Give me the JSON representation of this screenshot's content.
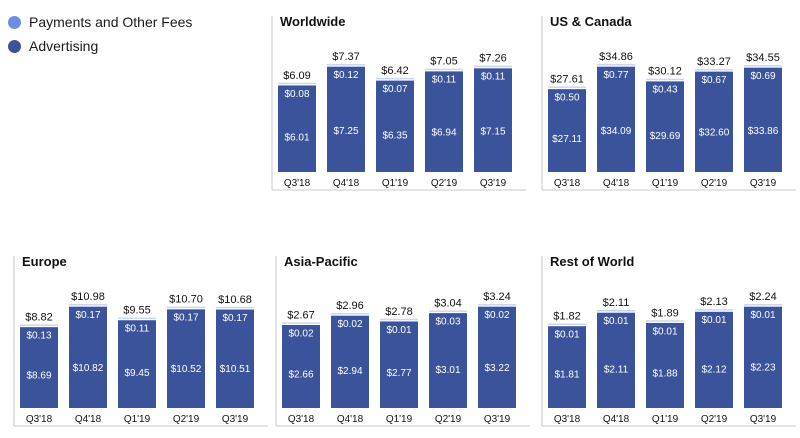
{
  "legend": {
    "items": [
      {
        "label": "Payments and Other Fees",
        "color": "#6d8de0"
      },
      {
        "label": "Advertising",
        "color": "#3b539a"
      }
    ]
  },
  "chart_data": [
    {
      "type": "bar",
      "stacked": true,
      "title": "Worldwide",
      "categories": [
        "Q3'18",
        "Q4'18",
        "Q1'19",
        "Q2'19",
        "Q3'19"
      ],
      "series": [
        {
          "name": "Advertising",
          "values": [
            6.01,
            7.25,
            6.35,
            6.94,
            7.15
          ],
          "labels": [
            "$6.01",
            "$7.25",
            "$6.35",
            "$6.94",
            "$7.15"
          ]
        },
        {
          "name": "Payments and Other Fees",
          "values": [
            0.08,
            0.12,
            0.07,
            0.11,
            0.11
          ],
          "labels": [
            "$0.08",
            "$0.12",
            "$0.07",
            "$0.11",
            "$0.11"
          ]
        }
      ],
      "totals": [
        6.09,
        7.37,
        6.42,
        7.05,
        7.26
      ],
      "total_labels": [
        "$6.09",
        "$7.37",
        "$6.42",
        "$7.05",
        "$7.26"
      ]
    },
    {
      "type": "bar",
      "stacked": true,
      "title": "US & Canada",
      "categories": [
        "Q3'18",
        "Q4'18",
        "Q1'19",
        "Q2'19",
        "Q3'19"
      ],
      "series": [
        {
          "name": "Advertising",
          "values": [
            27.11,
            34.09,
            29.69,
            32.6,
            33.86
          ],
          "labels": [
            "$27.11",
            "$34.09",
            "$29.69",
            "$32.60",
            "$33.86"
          ]
        },
        {
          "name": "Payments and Other Fees",
          "values": [
            0.5,
            0.77,
            0.43,
            0.67,
            0.69
          ],
          "labels": [
            "$0.50",
            "$0.77",
            "$0.43",
            "$0.67",
            "$0.69"
          ]
        }
      ],
      "totals": [
        27.61,
        34.86,
        30.12,
        33.27,
        34.55
      ],
      "total_labels": [
        "$27.61",
        "$34.86",
        "$30.12",
        "$33.27",
        "$34.55"
      ]
    },
    {
      "type": "bar",
      "stacked": true,
      "title": "Europe",
      "categories": [
        "Q3'18",
        "Q4'18",
        "Q1'19",
        "Q2'19",
        "Q3'19"
      ],
      "series": [
        {
          "name": "Advertising",
          "values": [
            8.69,
            10.82,
            9.45,
            10.52,
            10.51
          ],
          "labels": [
            "$8.69",
            "$10.82",
            "$9.45",
            "$10.52",
            "$10.51"
          ]
        },
        {
          "name": "Payments and Other Fees",
          "values": [
            0.13,
            0.17,
            0.11,
            0.17,
            0.17
          ],
          "labels": [
            "$0.13",
            "$0.17",
            "$0.11",
            "$0.17",
            "$0.17"
          ]
        }
      ],
      "totals": [
        8.82,
        10.98,
        9.55,
        10.7,
        10.68
      ],
      "total_labels": [
        "$8.82",
        "$10.98",
        "$9.55",
        "$10.70",
        "$10.68"
      ]
    },
    {
      "type": "bar",
      "stacked": true,
      "title": "Asia-Pacific",
      "categories": [
        "Q3'18",
        "Q4'18",
        "Q1'19",
        "Q2'19",
        "Q3'19"
      ],
      "series": [
        {
          "name": "Advertising",
          "values": [
            2.66,
            2.94,
            2.77,
            3.01,
            3.22
          ],
          "labels": [
            "$2.66",
            "$2.94",
            "$2.77",
            "$3.01",
            "$3.22"
          ]
        },
        {
          "name": "Payments and Other Fees",
          "values": [
            0.02,
            0.02,
            0.01,
            0.03,
            0.02
          ],
          "labels": [
            "$0.02",
            "$0.02",
            "$0.01",
            "$0.03",
            "$0.02"
          ]
        }
      ],
      "totals": [
        2.67,
        2.96,
        2.78,
        3.04,
        3.24
      ],
      "total_labels": [
        "$2.67",
        "$2.96",
        "$2.78",
        "$3.04",
        "$3.24"
      ]
    },
    {
      "type": "bar",
      "stacked": true,
      "title": "Rest of World",
      "categories": [
        "Q3'18",
        "Q4'18",
        "Q1'19",
        "Q2'19",
        "Q3'19"
      ],
      "series": [
        {
          "name": "Advertising",
          "values": [
            1.81,
            2.11,
            1.88,
            2.12,
            2.23
          ],
          "labels": [
            "$1.81",
            "$2.11",
            "$1.88",
            "$2.12",
            "$2.23"
          ]
        },
        {
          "name": "Payments and Other Fees",
          "values": [
            0.01,
            0.01,
            0.01,
            0.01,
            0.01
          ],
          "labels": [
            "$0.01",
            "$0.01",
            "$0.01",
            "$0.01",
            "$0.01"
          ]
        }
      ],
      "totals": [
        1.82,
        2.11,
        1.89,
        2.13,
        2.24
      ],
      "total_labels": [
        "$1.82",
        "$2.11",
        "$1.89",
        "$2.13",
        "$2.24"
      ]
    }
  ]
}
